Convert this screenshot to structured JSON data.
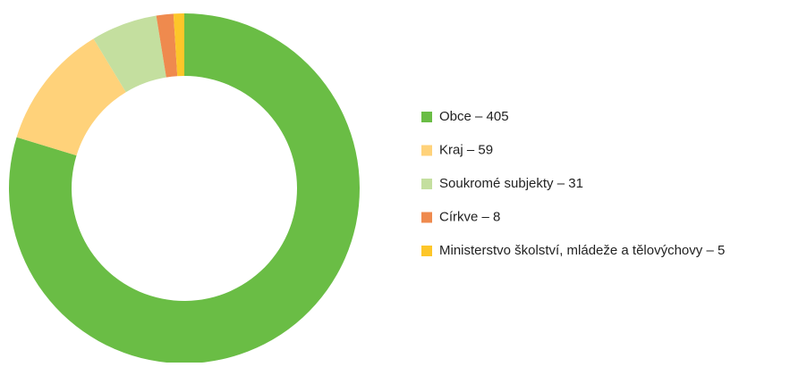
{
  "chart_data": {
    "type": "donut",
    "categories": [
      "Obce – 405",
      "Kraj – 59",
      "Soukromé subjekty – 31",
      "Církve – 8",
      "Ministerstvo školství, mládeže a tělovýchovy – 5"
    ],
    "values": [
      405,
      59,
      31,
      8,
      5
    ],
    "colors": [
      "#6abd45",
      "#ffd27a",
      "#c4df9f",
      "#ef8a4e",
      "#fdc629"
    ],
    "legend": "right"
  }
}
